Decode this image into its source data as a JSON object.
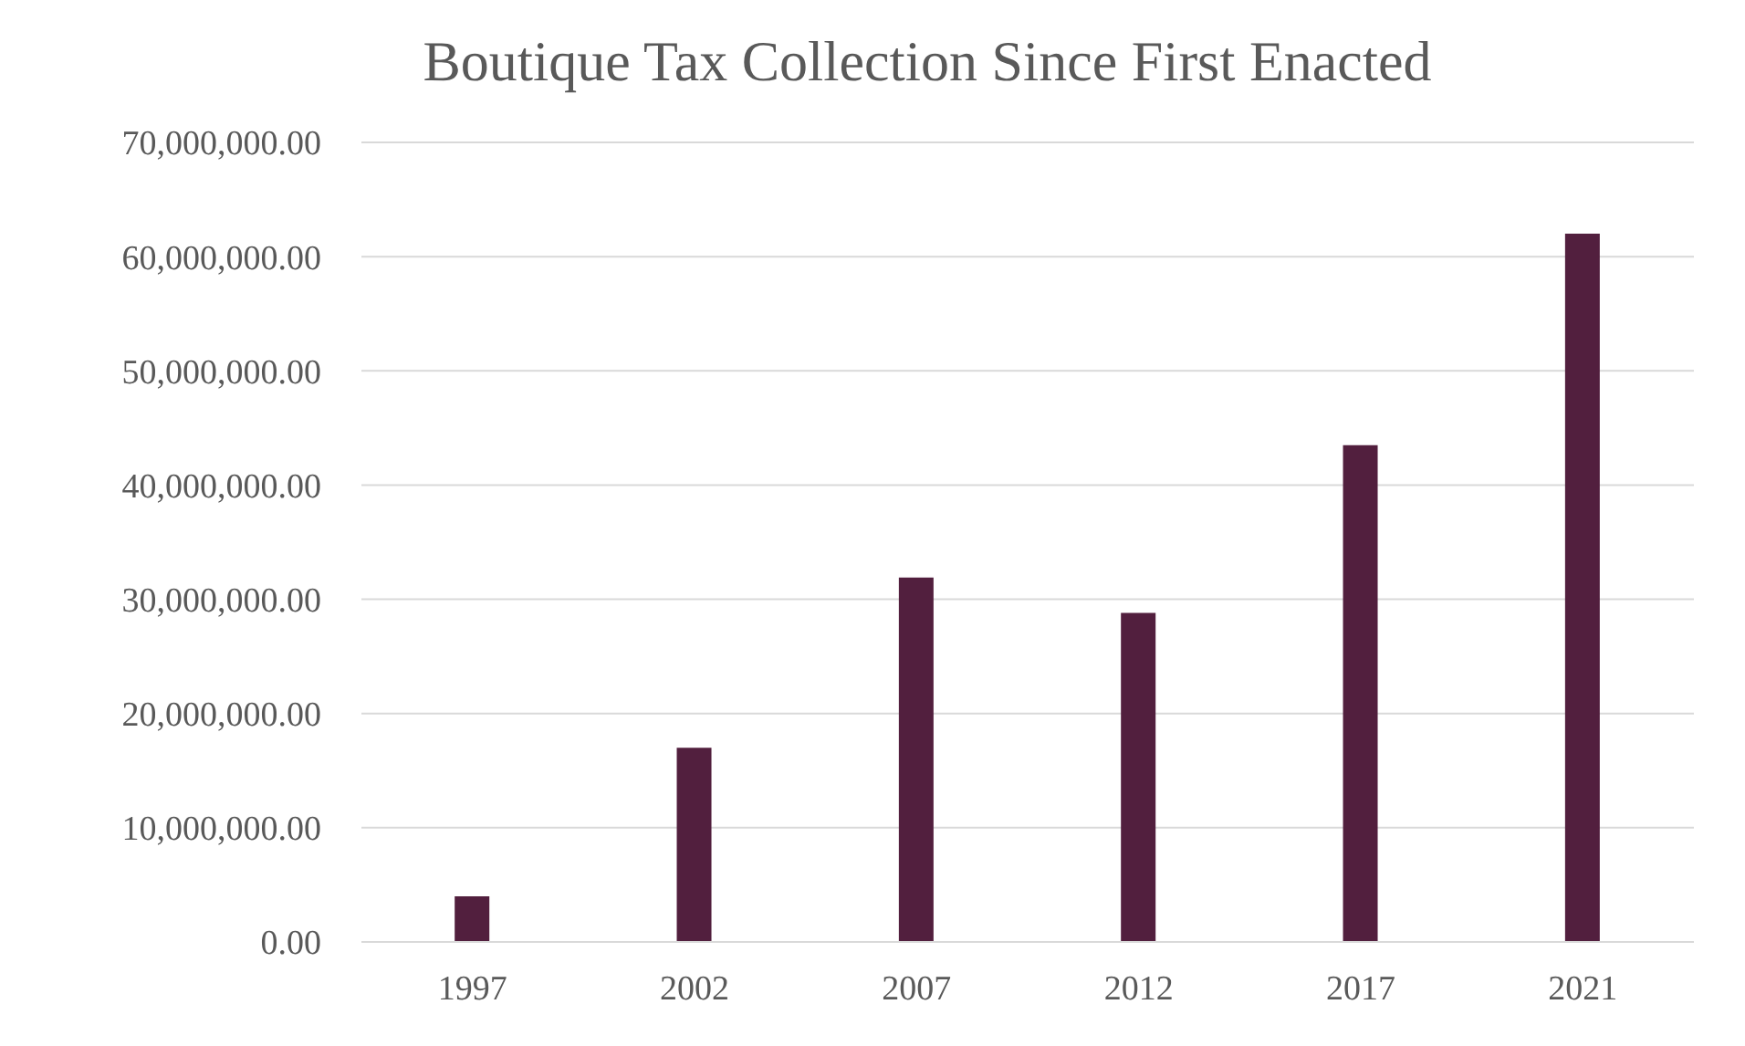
{
  "chart_data": {
    "type": "bar",
    "title": "Boutique Tax Collection Since First Enacted",
    "categories": [
      "1997",
      "2002",
      "2007",
      "2012",
      "2017",
      "2021"
    ],
    "values": [
      4000000,
      17000000,
      31900000,
      28800000,
      43500000,
      62000000
    ],
    "color": "#521f3e",
    "ylim": [
      0,
      70000000
    ],
    "yticks": [
      {
        "value": 0,
        "label": "0.00"
      },
      {
        "value": 10000000,
        "label": "10,000,000.00"
      },
      {
        "value": 20000000,
        "label": "20,000,000.00"
      },
      {
        "value": 30000000,
        "label": "30,000,000.00"
      },
      {
        "value": 40000000,
        "label": "40,000,000.00"
      },
      {
        "value": 50000000,
        "label": "50,000,000.00"
      },
      {
        "value": 60000000,
        "label": "60,000,000.00"
      },
      {
        "value": 70000000,
        "label": "70,000,000.00"
      }
    ],
    "grid": "y"
  }
}
